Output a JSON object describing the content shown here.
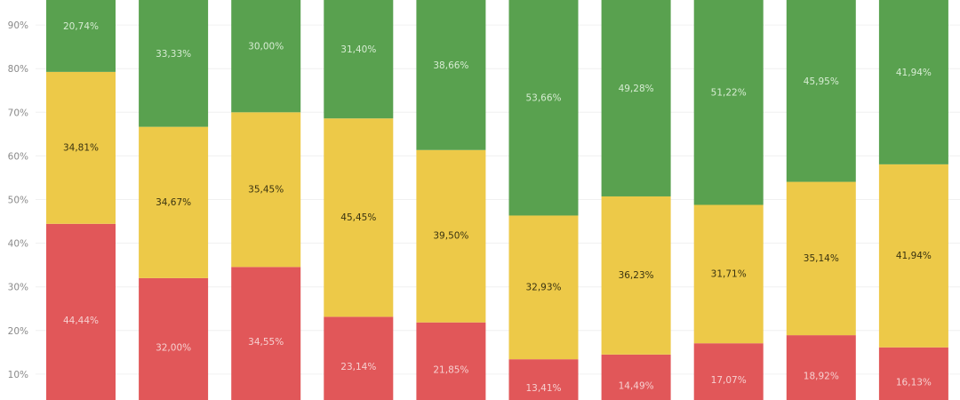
{
  "chart_data": {
    "type": "bar",
    "stacked": true,
    "normalized": true,
    "title": "",
    "xlabel": "",
    "ylabel": "",
    "ylim": [
      0,
      100
    ],
    "visible_y_range": [
      4,
      96
    ],
    "y_ticks": [
      "10%",
      "20%",
      "30%",
      "40%",
      "50%",
      "60%",
      "70%",
      "80%",
      "90%"
    ],
    "grid": true,
    "categories": [
      "",
      "",
      "",
      "",
      "",
      "",
      "",
      "",
      "",
      ""
    ],
    "series": [
      {
        "color": "#e15759",
        "label_color": "#f6d0d0",
        "values": [
          44.44,
          32.0,
          34.55,
          23.14,
          21.85,
          13.41,
          14.49,
          17.07,
          18.92,
          16.13
        ],
        "labels": [
          "44,44%",
          "32,00%",
          "34,55%",
          "23,14%",
          "21,85%",
          "13,41%",
          "14,49%",
          "17,07%",
          "18,92%",
          "16,13%"
        ]
      },
      {
        "color": "#edc948",
        "label_color": "#3a3310",
        "values": [
          34.81,
          34.67,
          35.45,
          45.45,
          39.5,
          32.93,
          36.23,
          31.71,
          35.14,
          41.94
        ],
        "labels": [
          "34,81%",
          "34,67%",
          "35,45%",
          "45,45%",
          "39,50%",
          "32,93%",
          "36,23%",
          "31,71%",
          "35,14%",
          "41,94%"
        ]
      },
      {
        "color": "#59a14f",
        "label_color": "#d6ecd2",
        "values": [
          20.74,
          33.33,
          30.0,
          31.4,
          38.66,
          53.66,
          49.28,
          51.22,
          45.95,
          41.94
        ],
        "labels": [
          "20,74%",
          "33,33%",
          "30,00%",
          "31,40%",
          "38,66%",
          "53,66%",
          "49,28%",
          "51,22%",
          "45,95%",
          "41,94%"
        ]
      }
    ]
  }
}
